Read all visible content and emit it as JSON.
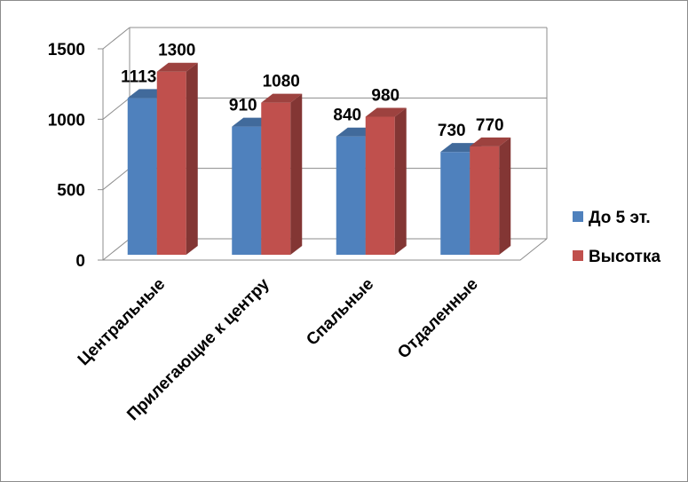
{
  "chart_data": {
    "type": "bar",
    "style": "3d-clustered-column",
    "categories": [
      "Центральные",
      "Прилегающие к центру",
      "Спальные",
      "Отдаленные"
    ],
    "series": [
      {
        "name": "До 5 эт.",
        "values": [
          1113,
          910,
          840,
          730
        ],
        "color": "#4f81bd"
      },
      {
        "name": "Высотка",
        "values": [
          1300,
          1080,
          980,
          770
        ],
        "color": "#c0504d"
      }
    ],
    "yticks": [
      0,
      500,
      1000,
      1500
    ],
    "ylim": [
      0,
      1500
    ],
    "grid": true,
    "legend": "right",
    "data_labels": true
  }
}
